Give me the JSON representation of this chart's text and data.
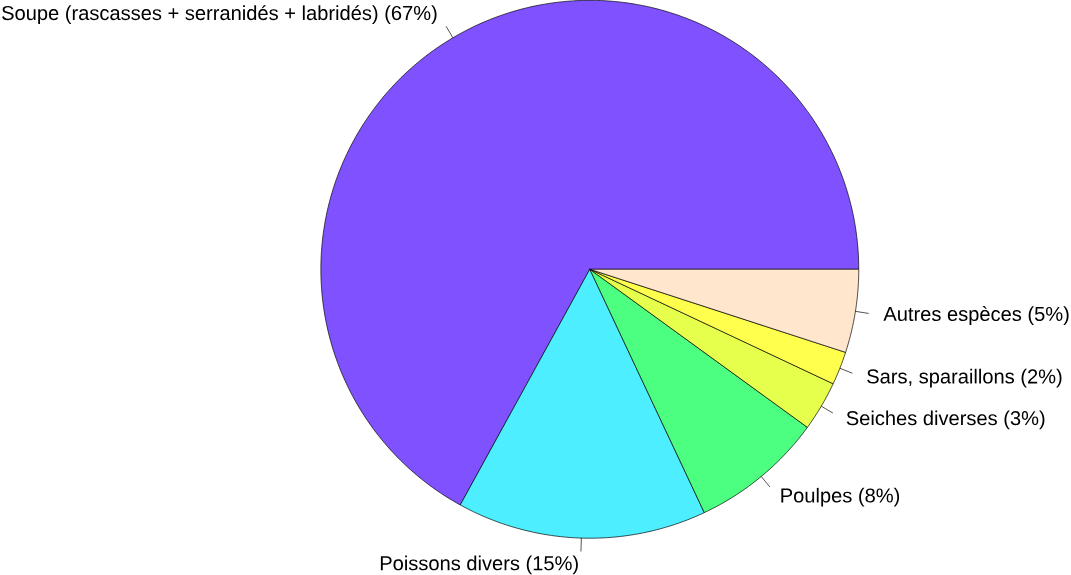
{
  "chart_data": {
    "type": "pie",
    "categories": [
      "Soupe (rascasses + serranidés + labridés) (67%)",
      "Poissons divers (15%)",
      "Poulpes (8%)",
      "Seiches diverses (3%)",
      "Sars, sparaillons (2%)",
      "Autres espèces (5%)"
    ],
    "values": [
      67,
      15,
      8,
      3,
      2,
      5
    ],
    "colors": [
      "#8052ff",
      "#4deeff",
      "#4dff80",
      "#e6ff4d",
      "#ffff4d",
      "#ffe6cc"
    ]
  }
}
